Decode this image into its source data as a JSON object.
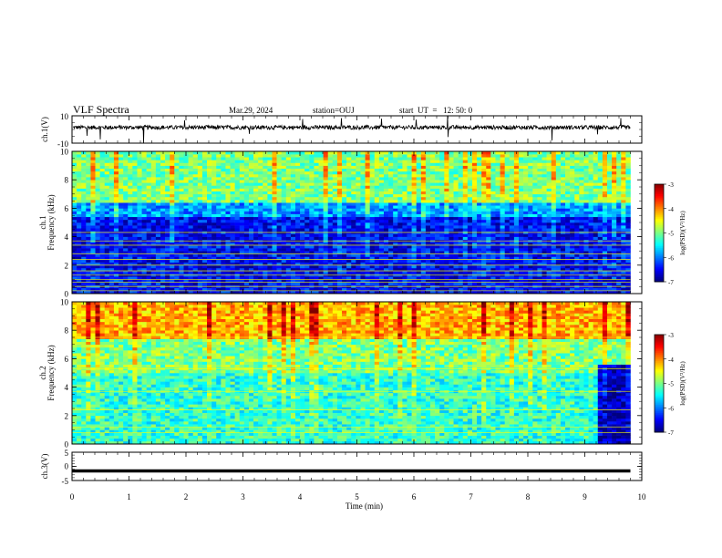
{
  "header": {
    "title": "VLF Spectra",
    "date": "Mar.29, 2024",
    "station": "station=OUJ",
    "start": "start  UT  =   12: 50: 0"
  },
  "chart_data": [
    {
      "type": "line",
      "panel": "ch1-waveform",
      "ylabel": "ch.1(V)",
      "ylim": [
        -10,
        10
      ],
      "yticks": [
        "10",
        "-10"
      ],
      "xlim": [
        0,
        10
      ],
      "series": [
        {
          "description": "noisy waveform near 0 V with sparse spikes",
          "baseline": 0,
          "noise_amplitude": 1.5
        }
      ]
    },
    {
      "type": "heatmap",
      "panel": "ch1-spectrogram",
      "ylabel": "ch.1\nFrequency (kHz)",
      "ylim": [
        0,
        10
      ],
      "yticks": [
        "0",
        "2",
        "4",
        "6",
        "8",
        "10"
      ],
      "xlim": [
        0,
        10
      ],
      "data_end_min": 9.8,
      "colorbar": {
        "label": "log(PSD)(V²/Hz)",
        "range": [
          -7,
          -3
        ],
        "ticks": [
          "-3",
          "-4",
          "-5",
          "-6",
          "-7"
        ]
      },
      "horizontal_lines_khz": [
        0.2,
        0.5,
        0.8,
        1.0,
        1.3,
        1.6,
        2.0,
        2.4,
        2.8,
        3.4,
        3.7,
        4.3
      ],
      "band_levels": [
        {
          "f_from": 0,
          "f_to": 5.4,
          "log_psd": -6.5
        },
        {
          "f_from": 5.4,
          "f_to": 6.5,
          "log_psd": -5.9
        },
        {
          "f_from": 6.5,
          "f_to": 10,
          "log_psd": -5.0
        }
      ]
    },
    {
      "type": "heatmap",
      "panel": "ch2-spectrogram",
      "ylabel": "ch.2\nFrequency (kHz)",
      "ylim": [
        0,
        10
      ],
      "yticks": [
        "0",
        "2",
        "4",
        "6",
        "8",
        "10"
      ],
      "xlim": [
        0,
        10
      ],
      "data_end_min": 9.8,
      "quiet_after_min": 9.2,
      "quiet_below_khz": 5.7,
      "colorbar": {
        "label": "log(PSD)(V²/Hz)",
        "range": [
          -7,
          -3
        ],
        "ticks": [
          "-3",
          "-4",
          "-5",
          "-6",
          "-7"
        ]
      },
      "horizontal_lines_khz": [
        0.8,
        1.2,
        2.4,
        3.7,
        5.3,
        7.5
      ],
      "band_levels": [
        {
          "f_from": 0,
          "f_to": 5.0,
          "log_psd": -5.3
        },
        {
          "f_from": 5.0,
          "f_to": 7.4,
          "log_psd": -5.0
        },
        {
          "f_from": 7.4,
          "f_to": 10,
          "log_psd": -4.2
        }
      ]
    },
    {
      "type": "line",
      "panel": "ch3-waveform",
      "ylabel": "ch.3(V)",
      "ylim": [
        -5,
        5
      ],
      "yticks": [
        "5",
        "0",
        "-5"
      ],
      "xlim": [
        0,
        10
      ],
      "series": [
        {
          "description": "flat trace",
          "value": 0
        }
      ]
    }
  ],
  "xaxis": {
    "label": "Time (min)",
    "ticks": [
      "0",
      "1",
      "2",
      "3",
      "4",
      "5",
      "6",
      "7",
      "8",
      "9",
      "10"
    ]
  }
}
